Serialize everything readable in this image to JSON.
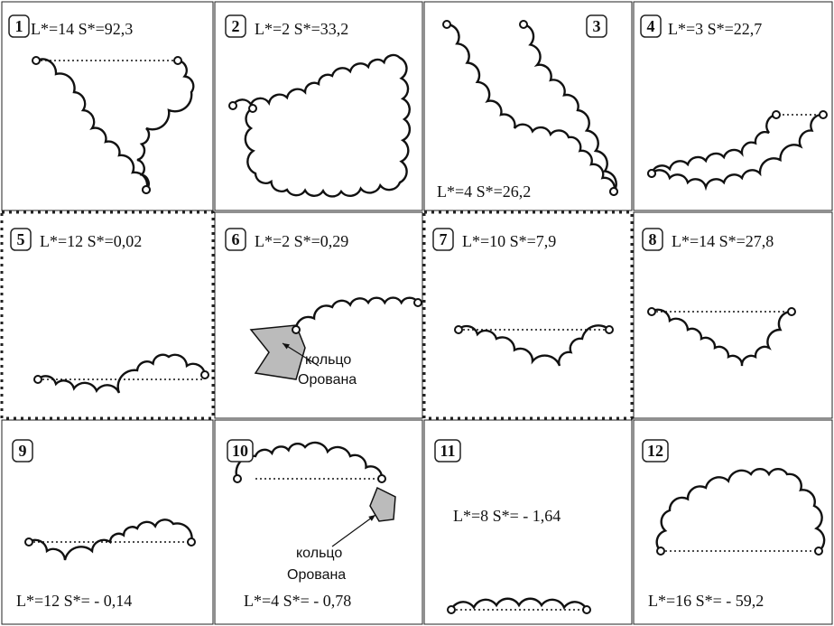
{
  "panels": [
    {
      "number": "1",
      "label": "L*=14  S*=92,3"
    },
    {
      "number": "2",
      "label": "L*=2  S*=33,2"
    },
    {
      "number": "3",
      "label": "L*=4  S*=26,2"
    },
    {
      "number": "4",
      "label": "L*=3  S*=22,7"
    },
    {
      "number": "5",
      "label": "L*=12  S*=0,02"
    },
    {
      "number": "6",
      "label": "L*=2  S*=0,29",
      "annotation": [
        "кольцо",
        "Орована"
      ]
    },
    {
      "number": "7",
      "label": "L*=10  S*=7,9"
    },
    {
      "number": "8",
      "label": "L*=14  S*=27,8"
    },
    {
      "number": "9",
      "label": "L*=12  S*= - 0,14"
    },
    {
      "number": "10",
      "label": "L*=4  S*= - 0,78",
      "annotation": [
        "кольцо",
        "Орована"
      ]
    },
    {
      "number": "11",
      "label": "L*=8  S*= - 1,64"
    },
    {
      "number": "12",
      "label": "L*=16  S*= - 59,2"
    }
  ]
}
